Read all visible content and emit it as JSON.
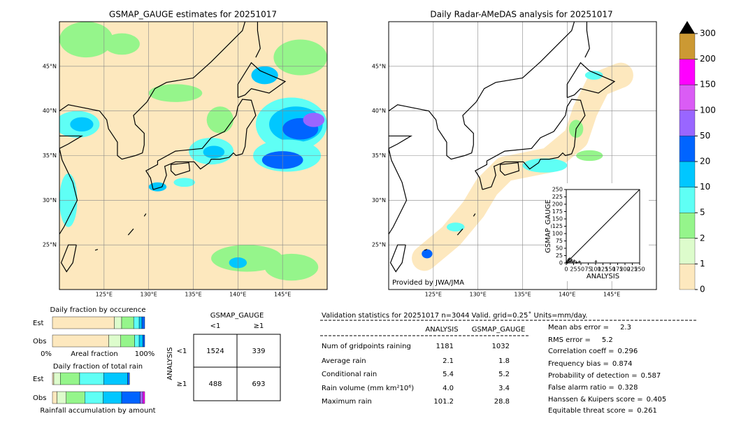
{
  "left_map": {
    "title": "GSMAP_GAUGE estimates for 20251017",
    "lat_labels": [
      "45°N",
      "40°N",
      "35°N",
      "30°N",
      "25°N"
    ],
    "lon_labels": [
      "125°E",
      "130°E",
      "135°E",
      "140°E",
      "145°E"
    ]
  },
  "right_map": {
    "title": "Daily Radar-AMeDAS analysis for 20251017",
    "lat_labels": [
      "45°N",
      "40°N",
      "35°N",
      "30°N",
      "25°N"
    ],
    "lon_labels": [
      "125°E",
      "130°E",
      "135°E",
      "140°E",
      "145°E"
    ],
    "credit": "Provided by JWA/JMA"
  },
  "colorbar": {
    "levels": [
      0,
      1,
      2,
      5,
      10,
      20,
      50,
      100,
      150,
      200,
      300
    ],
    "colors": [
      "#fde8be",
      "#ddfccc",
      "#95f58b",
      "#5ffff5",
      "#00c7ff",
      "#0064ff",
      "#9966ff",
      "#da5cf5",
      "#ff00ff",
      "#cc9933"
    ]
  },
  "chart_data": [
    {
      "type": "scatter",
      "xlabel": "ANALYSIS",
      "ylabel": "GSMAP_GAUGE",
      "xlim": [
        0,
        250
      ],
      "ylim": [
        0,
        250
      ],
      "xticks": [
        0,
        25,
        50,
        75,
        100,
        125,
        150,
        175,
        200,
        225,
        250
      ],
      "yticks": [
        0,
        25,
        50,
        75,
        100,
        125,
        150,
        175,
        200,
        225,
        250
      ],
      "x": [
        2,
        4,
        6,
        8,
        10,
        12,
        15,
        18,
        22,
        28,
        35,
        45,
        101
      ],
      "y": [
        3,
        1,
        8,
        12,
        4,
        15,
        6,
        10,
        3,
        7,
        2,
        4,
        5
      ],
      "color": "#000000"
    },
    {
      "type": "stacked_bar",
      "title": "Daily fraction by occurence",
      "xlabel": "Areal fraction",
      "categories": [
        "Est",
        "Obs"
      ],
      "xlim": [
        0,
        100
      ],
      "xticks": [
        {
          "value": 0,
          "label": "0%"
        },
        {
          "value": 100,
          "label": "100%"
        }
      ],
      "series": [
        {
          "color": "#fde8be",
          "values": [
            67,
            61
          ]
        },
        {
          "color": "#ddfccc",
          "values": [
            8,
            13
          ]
        },
        {
          "color": "#95f58b",
          "values": [
            13,
            15
          ]
        },
        {
          "color": "#5ffff5",
          "values": [
            6,
            5
          ]
        },
        {
          "color": "#00c7ff",
          "values": [
            3,
            4
          ]
        },
        {
          "color": "#0064ff",
          "values": [
            3,
            2
          ]
        }
      ]
    },
    {
      "type": "stacked_bar",
      "title": "Daily fraction of total rain",
      "xlabel": "Rainfall accumulation by amount",
      "categories": [
        "Est",
        "Obs"
      ],
      "xlim": [
        0,
        100
      ],
      "series": [
        {
          "color": "#fde8be",
          "values": [
            1.5,
            5
          ]
        },
        {
          "color": "#ddfccc",
          "values": [
            7,
            10
          ]
        },
        {
          "color": "#95f58b",
          "values": [
            21,
            20
          ]
        },
        {
          "color": "#5ffff5",
          "values": [
            26,
            20
          ]
        },
        {
          "color": "#00c7ff",
          "values": [
            26,
            20
          ]
        },
        {
          "color": "#0064ff",
          "values": [
            2,
            20
          ]
        },
        {
          "color": "#9966ff",
          "values": [
            0,
            3
          ]
        },
        {
          "color": "#ff00ff",
          "values": [
            0,
            2
          ]
        }
      ]
    }
  ],
  "contingency": {
    "title": "GSMAP_GAUGE",
    "col_labels": [
      "<1",
      "≥1"
    ],
    "row_axis": "ANALYSIS",
    "row_labels": [
      "<1",
      "≥1"
    ],
    "cells": [
      [
        1524,
        339
      ],
      [
        488,
        693
      ]
    ]
  },
  "validation": {
    "header": "Validation statistics for 20251017  n=3044 Valid. grid=0.25˚ Units=mm/day.",
    "columns": [
      "ANALYSIS",
      "GSMAP_GAUGE"
    ],
    "rows": [
      {
        "label": "Num of gridpoints raining",
        "values": [
          "1181",
          "1032"
        ]
      },
      {
        "label": "Average rain",
        "values": [
          "2.1",
          "1.8"
        ]
      },
      {
        "label": "Conditional rain",
        "values": [
          "5.4",
          "5.2"
        ]
      },
      {
        "label": "Rain volume (mm km²10⁶)",
        "values": [
          "4.0",
          "3.4"
        ]
      },
      {
        "label": "Maximum rain",
        "values": [
          "101.2",
          "28.8"
        ]
      }
    ],
    "scores": [
      {
        "label": "Mean abs error =",
        "value": "2.3"
      },
      {
        "label": "RMS error =",
        "value": "5.2"
      },
      {
        "label": "Correlation coeff =",
        "value": "0.296"
      },
      {
        "label": "Frequency bias =",
        "value": "0.874"
      },
      {
        "label": "Probability of detection =",
        "value": "0.587"
      },
      {
        "label": "False alarm ratio =",
        "value": "0.328"
      },
      {
        "label": "Hanssen & Kuipers score =",
        "value": "0.405"
      },
      {
        "label": "Equitable threat score =",
        "value": "0.261"
      }
    ]
  }
}
